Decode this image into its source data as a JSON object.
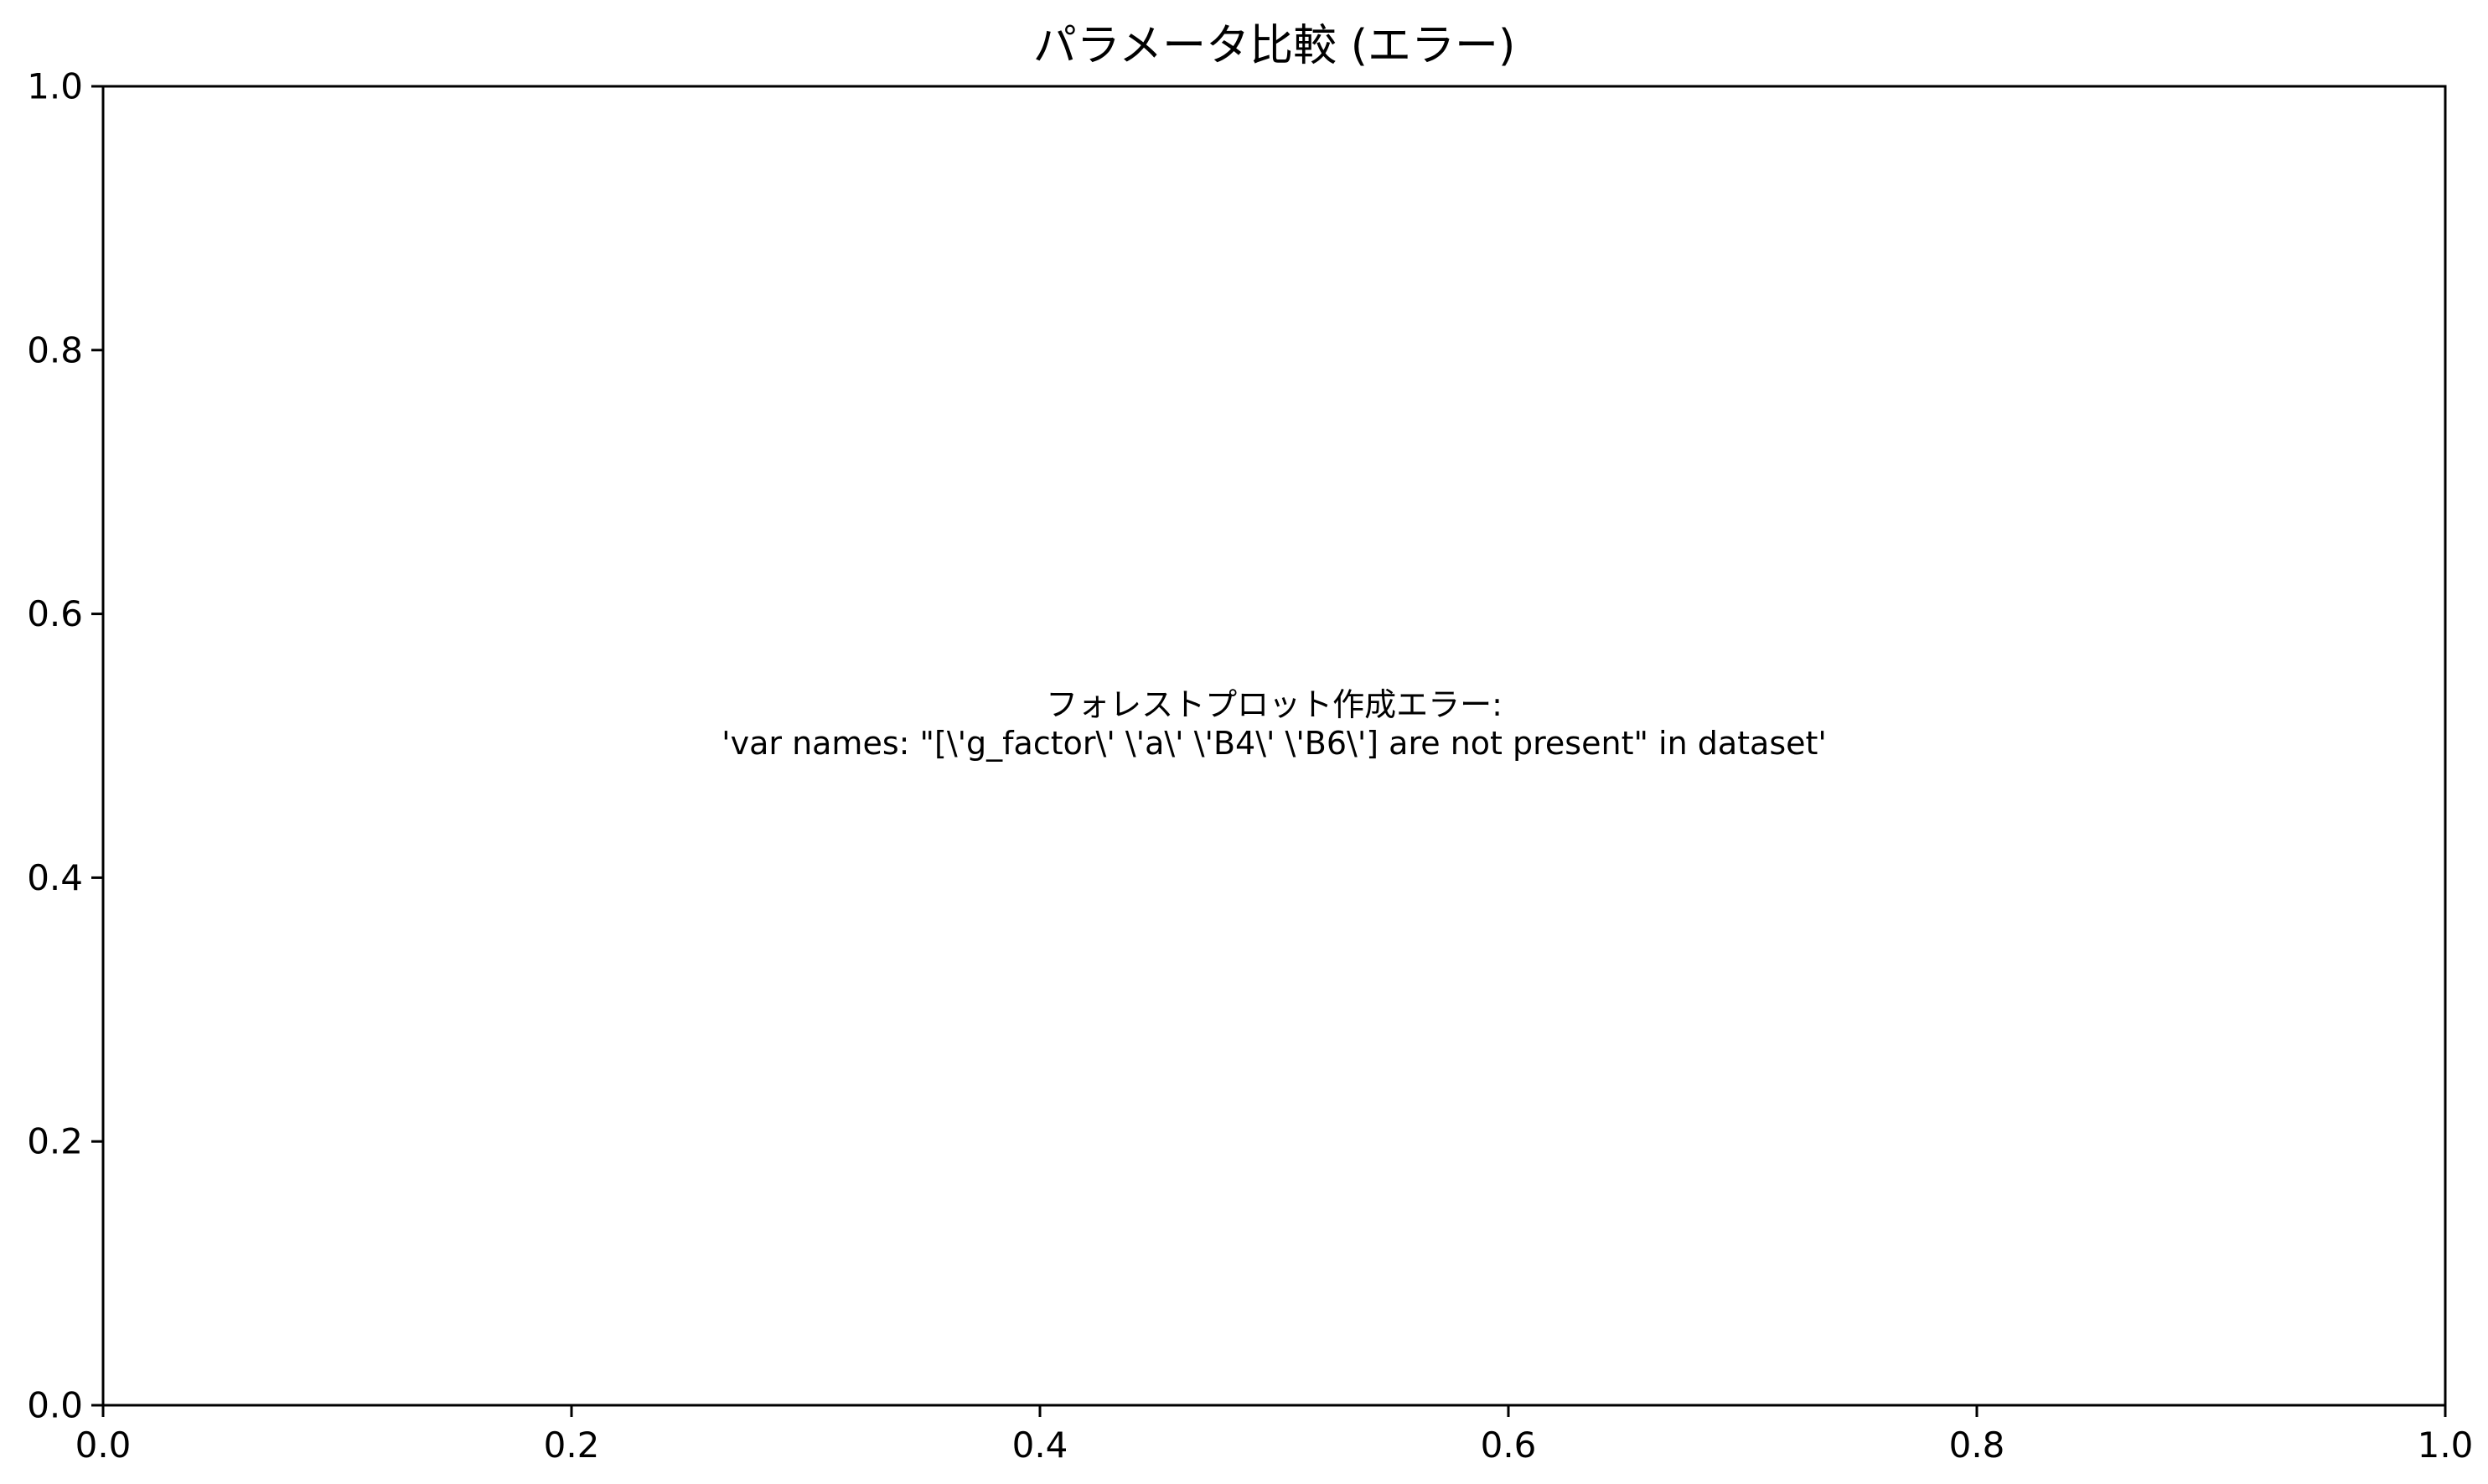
{
  "chart_data": {
    "type": "scatter",
    "title": "パラメータ比較 (エラー)",
    "xlabel": "",
    "ylabel": "",
    "xlim": [
      0.0,
      1.0
    ],
    "ylim": [
      0.0,
      1.0
    ],
    "grid": false,
    "x_ticks": [
      0.0,
      0.2,
      0.4,
      0.6,
      0.8,
      1.0
    ],
    "y_ticks": [
      0.0,
      0.2,
      0.4,
      0.6,
      0.8,
      1.0
    ],
    "x_tick_labels": [
      "0.0",
      "0.2",
      "0.4",
      "0.6",
      "0.8",
      "1.0"
    ],
    "y_tick_labels": [
      "0.0",
      "0.2",
      "0.4",
      "0.6",
      "0.8",
      "1.0"
    ],
    "series": [],
    "annotation": {
      "lines": [
        "フォレストプロット作成エラー:",
        "'var names: \"[\\'g_factor\\' \\'a\\' \\'B4\\' \\'B6\\'] are not present\" in dataset'"
      ],
      "x": 0.5,
      "y": 0.5
    }
  }
}
